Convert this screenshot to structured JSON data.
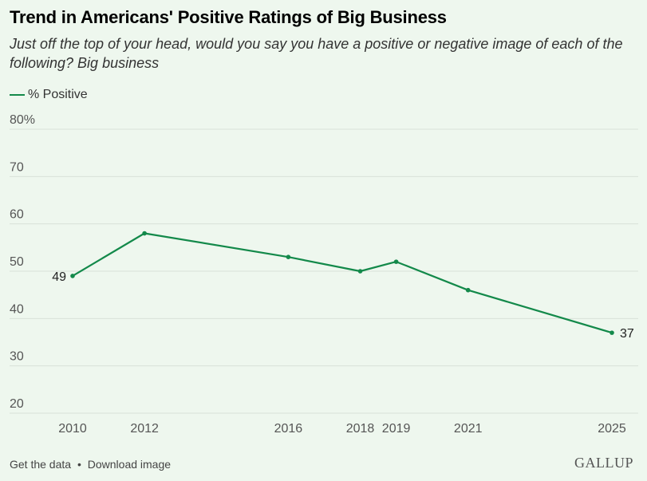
{
  "header": {
    "title": "Trend in Americans' Positive Ratings of Big Business",
    "subtitle": "Just off the top of your head, would you say you have a positive or negative image of each of the following? Big business"
  },
  "legend": {
    "label": "% Positive"
  },
  "colors": {
    "series": "#13894a",
    "grid": "#d8e2d8",
    "background": "#eef7ee"
  },
  "footer": {
    "get_data": "Get the data",
    "separator": "•",
    "download": "Download image",
    "brand": "GALLUP"
  },
  "chart_data": {
    "type": "line",
    "title": "Trend in Americans' Positive Ratings of Big Business",
    "subtitle": "Just off the top of your head, would you say you have a positive or negative image of each of the following? Big business",
    "xlabel": "",
    "ylabel": "",
    "x": [
      2010,
      2012,
      2016,
      2018,
      2019,
      2021,
      2025
    ],
    "x_tick_labels": [
      "2010",
      "2012",
      "2016",
      "2018",
      "2019",
      "2021",
      "2025"
    ],
    "y_tick_labels": [
      "80%",
      "70",
      "60",
      "50",
      "40",
      "30",
      "20"
    ],
    "y_ticks": [
      80,
      70,
      60,
      50,
      40,
      30,
      20
    ],
    "ylim": [
      20,
      80
    ],
    "xlim": [
      2010,
      2025
    ],
    "grid": "horizontal",
    "legend": "top-left",
    "series": [
      {
        "name": "% Positive",
        "values": [
          49,
          58,
          53,
          50,
          52,
          46,
          37
        ]
      }
    ],
    "data_labels": [
      {
        "x": 2010,
        "text": "49"
      },
      {
        "x": 2025,
        "text": "37"
      }
    ]
  }
}
